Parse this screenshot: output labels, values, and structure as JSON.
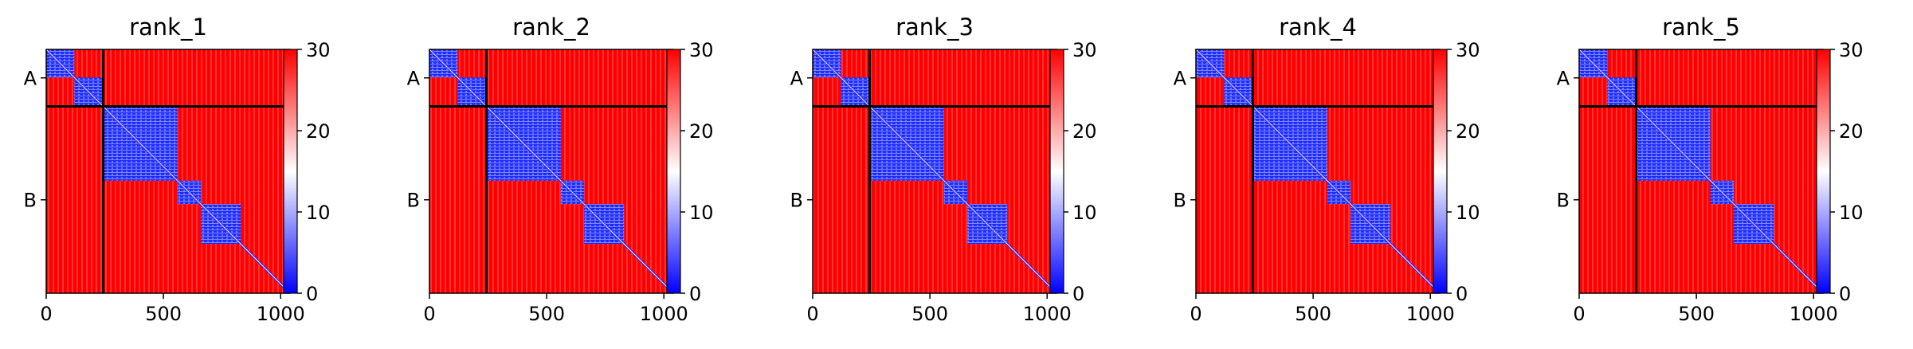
{
  "chart_data": [
    {
      "type": "heatmap",
      "title": "rank_1",
      "chains": [
        {
          "label": "A",
          "start": 0,
          "end": 243
        },
        {
          "label": "B",
          "start": 243,
          "end": 1040
        }
      ],
      "x_ticks": [
        0,
        500,
        1000
      ],
      "xlim": [
        0,
        1040
      ],
      "colorbar": {
        "min": 0,
        "max": 30,
        "ticks": [
          0,
          10,
          20,
          30
        ],
        "colors": [
          "#0000ff",
          "#ffffff",
          "#ff0000"
        ]
      },
      "blue_blocks": [
        [
          0,
          120
        ],
        [
          120,
          243
        ],
        [
          243,
          560
        ],
        [
          560,
          660
        ],
        [
          660,
          830
        ]
      ]
    },
    {
      "type": "heatmap",
      "title": "rank_2",
      "chains": [
        {
          "label": "A",
          "start": 0,
          "end": 243
        },
        {
          "label": "B",
          "start": 243,
          "end": 1040
        }
      ],
      "x_ticks": [
        0,
        500,
        1000
      ],
      "xlim": [
        0,
        1040
      ],
      "colorbar": {
        "min": 0,
        "max": 30,
        "ticks": [
          0,
          10,
          20,
          30
        ],
        "colors": [
          "#0000ff",
          "#ffffff",
          "#ff0000"
        ]
      },
      "blue_blocks": [
        [
          0,
          120
        ],
        [
          120,
          243
        ],
        [
          243,
          560
        ],
        [
          560,
          660
        ],
        [
          660,
          830
        ]
      ]
    },
    {
      "type": "heatmap",
      "title": "rank_3",
      "chains": [
        {
          "label": "A",
          "start": 0,
          "end": 243
        },
        {
          "label": "B",
          "start": 243,
          "end": 1040
        }
      ],
      "x_ticks": [
        0,
        500,
        1000
      ],
      "xlim": [
        0,
        1040
      ],
      "colorbar": {
        "min": 0,
        "max": 30,
        "ticks": [
          0,
          10,
          20,
          30
        ],
        "colors": [
          "#0000ff",
          "#ffffff",
          "#ff0000"
        ]
      },
      "blue_blocks": [
        [
          0,
          120
        ],
        [
          120,
          243
        ],
        [
          243,
          560
        ],
        [
          560,
          660
        ],
        [
          660,
          830
        ]
      ]
    },
    {
      "type": "heatmap",
      "title": "rank_4",
      "chains": [
        {
          "label": "A",
          "start": 0,
          "end": 243
        },
        {
          "label": "B",
          "start": 243,
          "end": 1040
        }
      ],
      "x_ticks": [
        0,
        500,
        1000
      ],
      "xlim": [
        0,
        1040
      ],
      "colorbar": {
        "min": 0,
        "max": 30,
        "ticks": [
          0,
          10,
          20,
          30
        ],
        "colors": [
          "#0000ff",
          "#ffffff",
          "#ff0000"
        ]
      },
      "blue_blocks": [
        [
          0,
          120
        ],
        [
          120,
          243
        ],
        [
          243,
          560
        ],
        [
          560,
          660
        ],
        [
          660,
          830
        ]
      ]
    },
    {
      "type": "heatmap",
      "title": "rank_5",
      "chains": [
        {
          "label": "A",
          "start": 0,
          "end": 243
        },
        {
          "label": "B",
          "start": 243,
          "end": 1040
        }
      ],
      "x_ticks": [
        0,
        500,
        1000
      ],
      "xlim": [
        0,
        1040
      ],
      "colorbar": {
        "min": 0,
        "max": 30,
        "ticks": [
          0,
          10,
          20,
          30
        ],
        "colors": [
          "#0000ff",
          "#ffffff",
          "#ff0000"
        ]
      },
      "blue_blocks": [
        [
          0,
          120
        ],
        [
          120,
          243
        ],
        [
          243,
          560
        ],
        [
          560,
          660
        ],
        [
          660,
          830
        ]
      ]
    }
  ]
}
